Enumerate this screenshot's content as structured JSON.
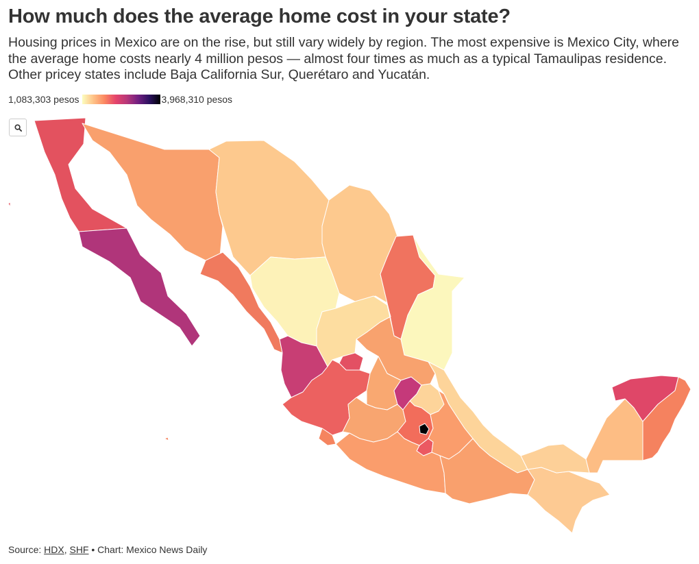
{
  "header": {
    "title": "How much does the average home cost in your state?",
    "subtitle": "Housing prices in Mexico are on the rise, but still vary widely by region. The most expensive is Mexico City, where the average home costs nearly 4 million pesos — almost four times as much as a typical Tamaulipas residence. Other pricey states include Baja California Sur, Querétaro and Yucatán."
  },
  "legend": {
    "min_label": "1,083,303 pesos",
    "max_label": "3,968,310 pesos",
    "min_value": 1083303,
    "max_value": 3968310
  },
  "controls": {
    "zoom_icon": "search-icon"
  },
  "map_data": {
    "type": "choropleth",
    "unit": "pesos",
    "color_scale": [
      "#fcfdbf",
      "#fec287",
      "#fb8861",
      "#e5446b",
      "#b73779",
      "#721f81",
      "#2c115f",
      "#000004"
    ],
    "colors": {
      "baja_california": "#e3525f",
      "baja_california_sur": "#b0357a",
      "sonora": "#f9a06d",
      "chihuahua": "#fdc98e",
      "coahuila": "#fdc98e",
      "nuevo_leon": "#f0735f",
      "tamaulipas": "#fcf7bd",
      "sinaloa": "#f07a5e",
      "durango": "#fdf2b8",
      "zacatecas": "#fddda0",
      "san_luis_potosi": "#f8a26e",
      "nayarit": "#c83e74",
      "aguascalientes": "#e35063",
      "jalisco": "#ec6160",
      "guanajuato": "#f9a871",
      "queretaro": "#c5397a",
      "hidalgo": "#fdd49a",
      "michoacan": "#f8a570",
      "mexico_state": "#f26d5b",
      "cdmx": "#000004",
      "morelos": "#eb5962",
      "tlaxcala": "#fcc290",
      "puebla": "#fa9d6c",
      "veracruz": "#fdd49a",
      "colima": "#f5845f",
      "guerrero": "#fa9d6c",
      "oaxaca": "#f9a06d",
      "chiapas": "#fdca93",
      "tabasco": "#fdd098",
      "campeche": "#fdbd84",
      "yucatan": "#df4768",
      "quintana_roo": "#f5825f"
    }
  },
  "footer": {
    "prefix": "Source: ",
    "link1": "HDX",
    "sep": ", ",
    "link2": "SHF",
    "suffix": " • Chart: Mexico News Daily"
  }
}
